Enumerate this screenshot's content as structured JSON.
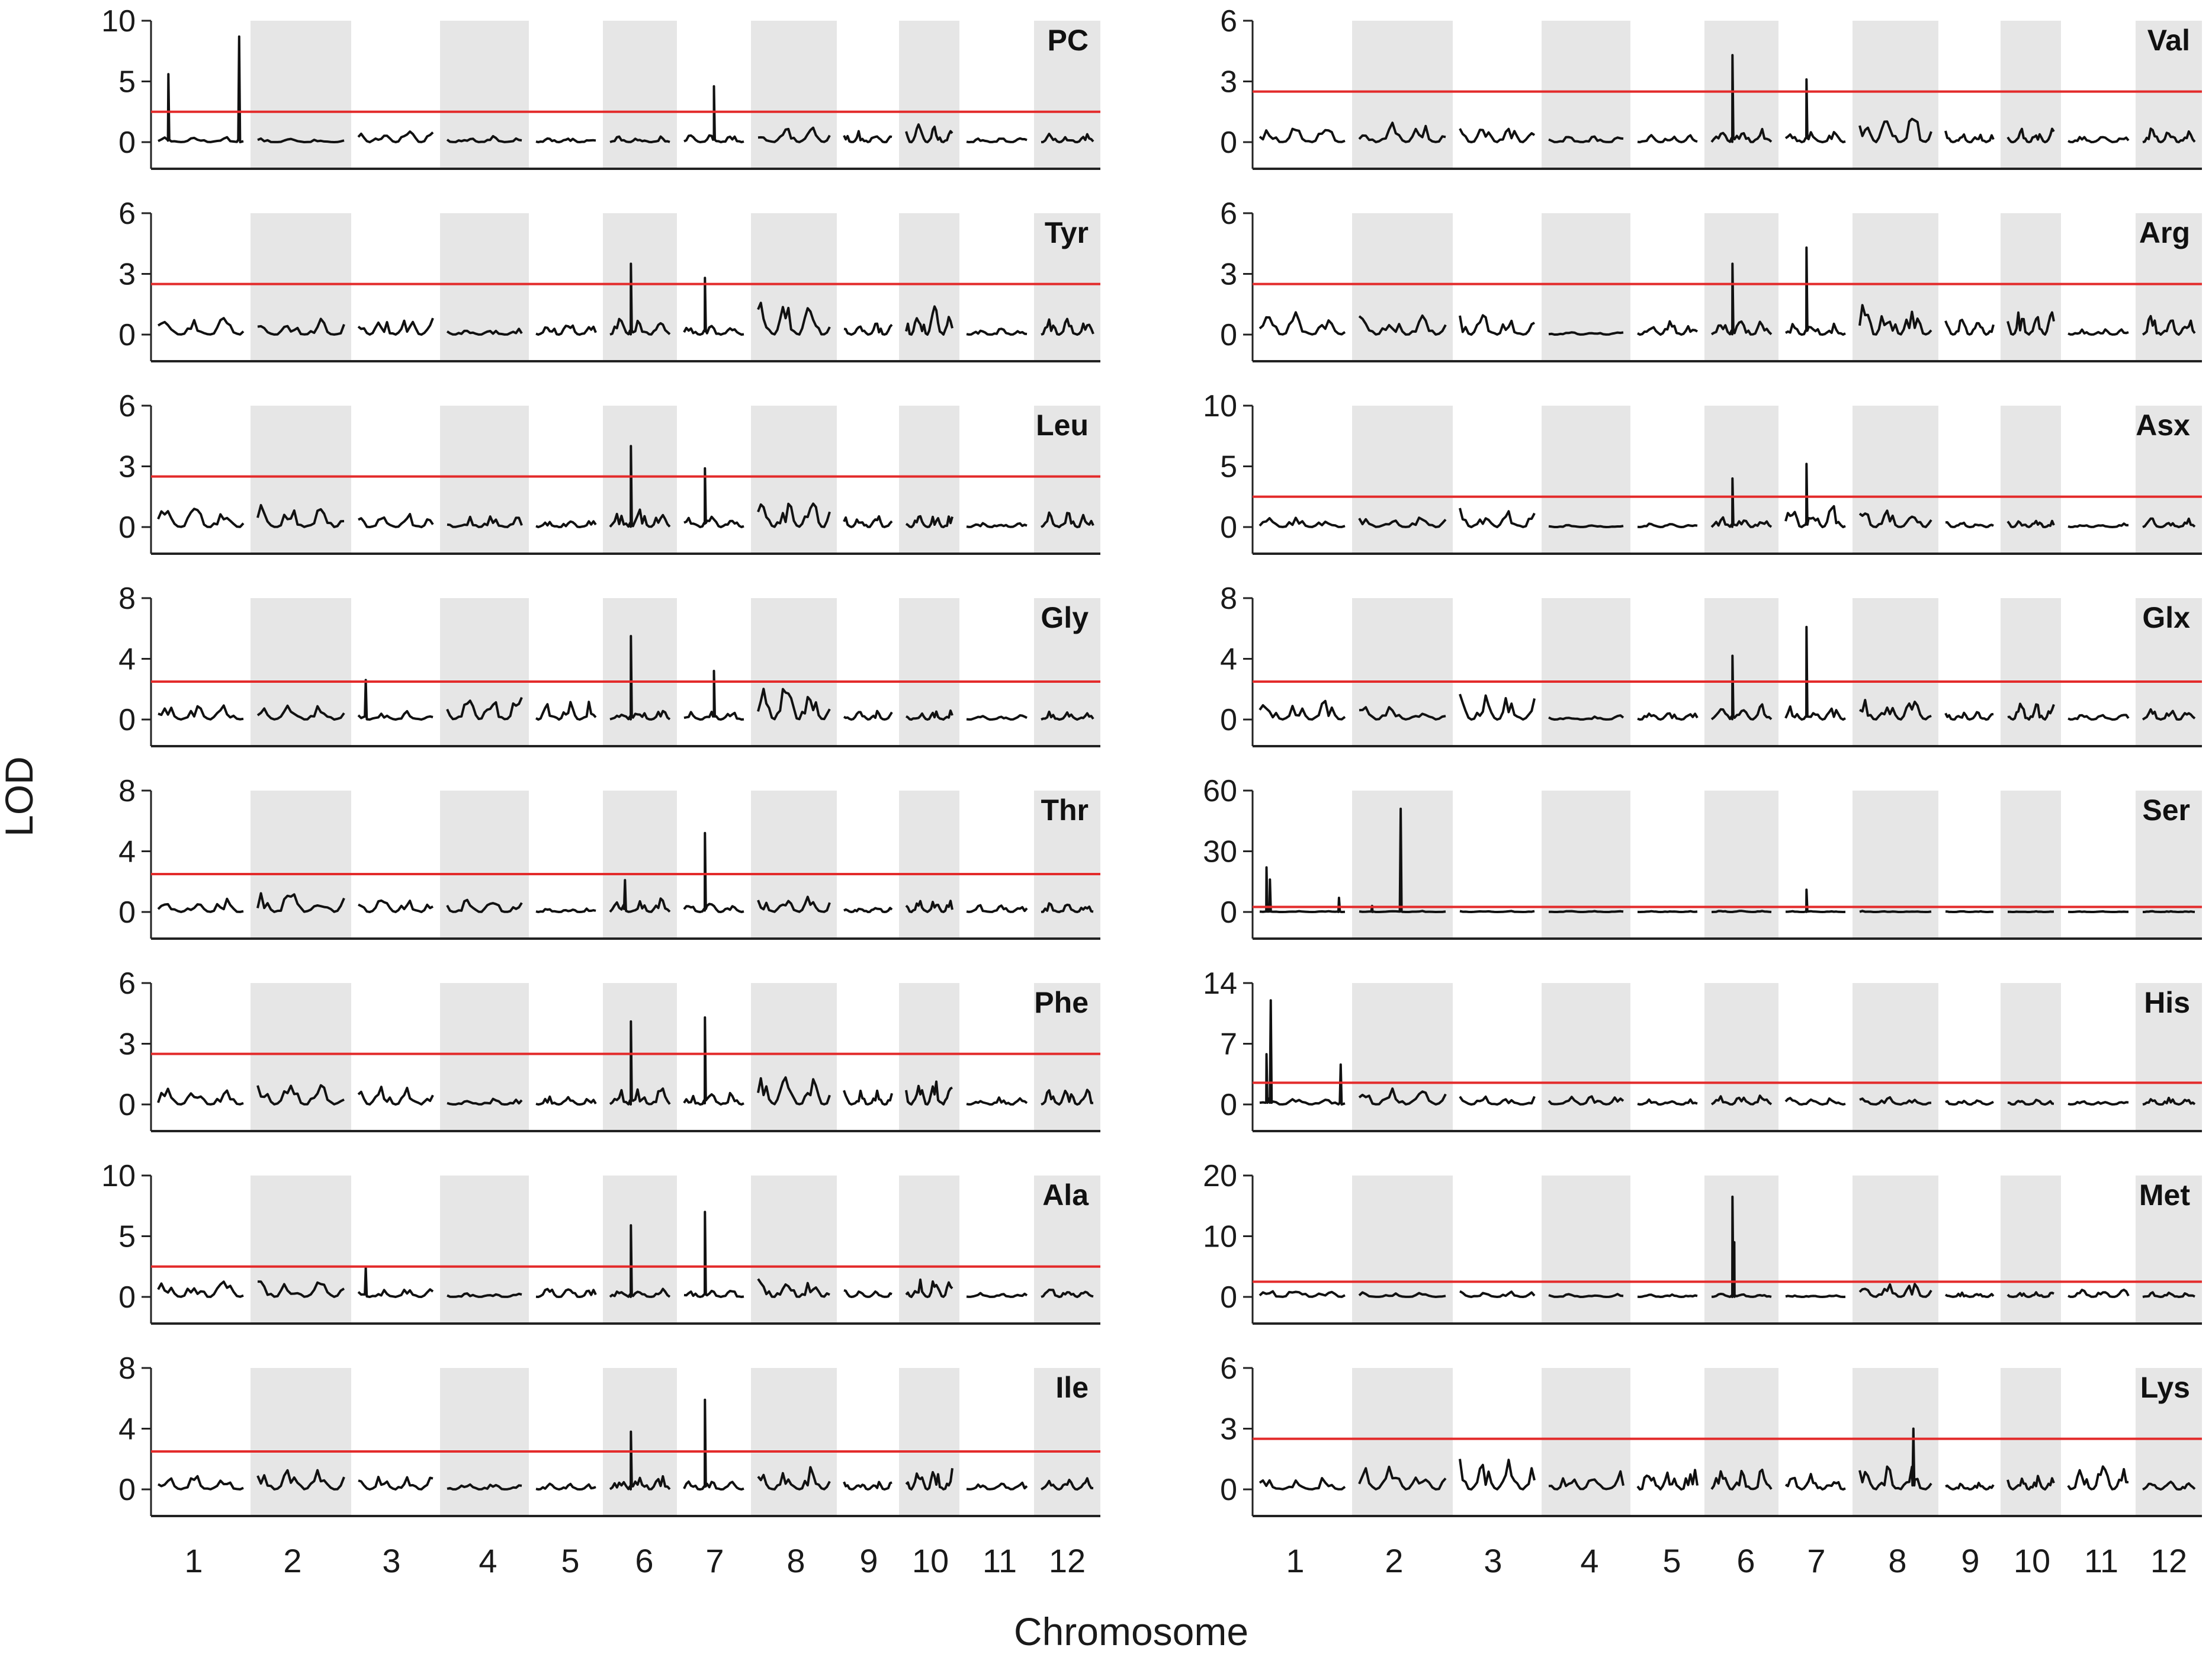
{
  "figure": {
    "ylabel": "LOD",
    "xlabel": "Chromosome",
    "threshold_color": "#e32b2b",
    "band_color": "#e6e6e6",
    "line_color": "#111111"
  },
  "chromosomes": [
    "1",
    "2",
    "3",
    "4",
    "5",
    "6",
    "7",
    "8",
    "9",
    "10",
    "11",
    "12"
  ],
  "chart_data": [
    {
      "type": "line",
      "title": "PC",
      "ylim": [
        0,
        10
      ],
      "yticks": [
        0,
        5,
        10
      ],
      "threshold": 2.5,
      "peaks": [
        {
          "chr": 1,
          "pos": 0.12,
          "lod": 5.6
        },
        {
          "chr": 1,
          "pos": 0.95,
          "lod": 8.7
        },
        {
          "chr": 7,
          "pos": 0.5,
          "lod": 4.6
        }
      ],
      "baseline": [
        0.5,
        0.3,
        1.0,
        0.6,
        0.4,
        0.5,
        0.6,
        1.3,
        1.0,
        1.5,
        0.4,
        0.7
      ]
    },
    {
      "type": "line",
      "title": "Val",
      "ylim": [
        0,
        6
      ],
      "yticks": [
        0,
        3,
        6
      ],
      "threshold": 2.5,
      "peaks": [
        {
          "chr": 6,
          "pos": 0.35,
          "lod": 4.3
        },
        {
          "chr": 7,
          "pos": 0.35,
          "lod": 3.1
        }
      ],
      "baseline": [
        0.8,
        1.0,
        0.8,
        0.3,
        0.4,
        0.8,
        0.6,
        1.6,
        0.6,
        0.7,
        0.3,
        0.7
      ]
    },
    {
      "type": "line",
      "title": "Tyr",
      "ylim": [
        0,
        6
      ],
      "yticks": [
        0,
        3,
        6
      ],
      "threshold": 2.5,
      "peaks": [
        {
          "chr": 6,
          "pos": 0.35,
          "lod": 3.5
        },
        {
          "chr": 7,
          "pos": 0.35,
          "lod": 2.8
        }
      ],
      "baseline": [
        0.9,
        0.8,
        0.9,
        0.3,
        0.7,
        0.8,
        0.5,
        1.7,
        0.6,
        1.5,
        0.3,
        0.8
      ]
    },
    {
      "type": "line",
      "title": "Arg",
      "ylim": [
        0,
        6
      ],
      "yticks": [
        0,
        3,
        6
      ],
      "threshold": 2.5,
      "peaks": [
        {
          "chr": 6,
          "pos": 0.35,
          "lod": 3.5
        },
        {
          "chr": 7,
          "pos": 0.35,
          "lod": 4.3
        }
      ],
      "baseline": [
        1.3,
        1.1,
        1.1,
        0.2,
        0.7,
        0.8,
        0.6,
        1.8,
        0.8,
        1.4,
        0.3,
        1.0
      ]
    },
    {
      "type": "line",
      "title": "Leu",
      "ylim": [
        0,
        6
      ],
      "yticks": [
        0,
        3,
        6
      ],
      "threshold": 2.5,
      "peaks": [
        {
          "chr": 6,
          "pos": 0.35,
          "lod": 4.0
        },
        {
          "chr": 7,
          "pos": 0.35,
          "lod": 2.9
        }
      ],
      "baseline": [
        1.0,
        1.2,
        0.8,
        0.6,
        0.4,
        0.9,
        0.6,
        1.6,
        0.7,
        0.7,
        0.3,
        0.8
      ]
    },
    {
      "type": "line",
      "title": "Asx",
      "ylim": [
        0,
        10
      ],
      "yticks": [
        0,
        5,
        10
      ],
      "threshold": 2.5,
      "peaks": [
        {
          "chr": 6,
          "pos": 0.35,
          "lod": 4.0
        },
        {
          "chr": 7,
          "pos": 0.35,
          "lod": 5.2
        }
      ],
      "baseline": [
        0.8,
        1.0,
        1.8,
        0.2,
        0.3,
        0.9,
        1.8,
        1.6,
        0.5,
        0.8,
        0.3,
        0.8
      ]
    },
    {
      "type": "line",
      "title": "Gly",
      "ylim": [
        0,
        8
      ],
      "yticks": [
        0,
        4,
        8
      ],
      "threshold": 2.5,
      "peaks": [
        {
          "chr": 6,
          "pos": 0.35,
          "lod": 5.5
        },
        {
          "chr": 7,
          "pos": 0.5,
          "lod": 3.2
        },
        {
          "chr": 3,
          "pos": 0.1,
          "lod": 2.6
        }
      ],
      "baseline": [
        1.3,
        1.0,
        0.6,
        1.8,
        1.3,
        0.8,
        0.6,
        2.6,
        0.6,
        0.6,
        0.3,
        0.6
      ]
    },
    {
      "type": "line",
      "title": "Glx",
      "ylim": [
        0,
        8
      ],
      "yticks": [
        0,
        4,
        8
      ],
      "threshold": 2.5,
      "peaks": [
        {
          "chr": 6,
          "pos": 0.35,
          "lod": 4.2
        },
        {
          "chr": 7,
          "pos": 0.35,
          "lod": 6.1
        }
      ],
      "baseline": [
        1.4,
        1.0,
        1.9,
        0.3,
        0.6,
        1.0,
        1.0,
        1.5,
        0.6,
        1.4,
        0.4,
        0.8
      ]
    },
    {
      "type": "line",
      "title": "Thr",
      "ylim": [
        0,
        8
      ],
      "yticks": [
        0,
        4,
        8
      ],
      "threshold": 2.5,
      "peaks": [
        {
          "chr": 6,
          "pos": 0.25,
          "lod": 2.1
        },
        {
          "chr": 7,
          "pos": 0.35,
          "lod": 5.2
        }
      ],
      "baseline": [
        1.0,
        1.5,
        1.0,
        0.8,
        0.3,
        1.0,
        0.6,
        1.2,
        0.4,
        0.9,
        0.5,
        0.7
      ]
    },
    {
      "type": "line",
      "title": "Ser",
      "ylim": [
        0,
        60
      ],
      "yticks": [
        0,
        30,
        60
      ],
      "threshold": 2.5,
      "peaks": [
        {
          "chr": 1,
          "pos": 0.08,
          "lod": 22
        },
        {
          "chr": 1,
          "pos": 0.12,
          "lod": 16
        },
        {
          "chr": 1,
          "pos": 0.93,
          "lod": 7
        },
        {
          "chr": 2,
          "pos": 0.48,
          "lod": 51
        },
        {
          "chr": 2,
          "pos": 0.15,
          "lod": 3
        },
        {
          "chr": 7,
          "pos": 0.35,
          "lod": 11
        }
      ],
      "baseline": [
        0.5,
        0.5,
        0.5,
        0.5,
        0.5,
        0.6,
        0.5,
        0.5,
        0.4,
        0.4,
        0.3,
        0.4
      ]
    },
    {
      "type": "line",
      "title": "Phe",
      "ylim": [
        0,
        6
      ],
      "yticks": [
        0,
        3,
        6
      ],
      "threshold": 2.5,
      "peaks": [
        {
          "chr": 6,
          "pos": 0.35,
          "lod": 4.1
        },
        {
          "chr": 7,
          "pos": 0.35,
          "lod": 4.3
        }
      ],
      "baseline": [
        1.0,
        1.1,
        1.0,
        0.3,
        0.4,
        1.0,
        0.6,
        1.5,
        0.7,
        1.2,
        0.4,
        0.9
      ]
    },
    {
      "type": "line",
      "title": "His",
      "ylim": [
        0,
        14
      ],
      "yticks": [
        0,
        7,
        14
      ],
      "threshold": 2.5,
      "peaks": [
        {
          "chr": 1,
          "pos": 0.08,
          "lod": 5.8
        },
        {
          "chr": 1,
          "pos": 0.13,
          "lod": 12
        },
        {
          "chr": 1,
          "pos": 0.95,
          "lod": 4.6
        }
      ],
      "baseline": [
        0.8,
        2.0,
        1.0,
        1.3,
        0.6,
        1.2,
        1.0,
        0.9,
        0.5,
        0.6,
        0.5,
        0.8
      ]
    },
    {
      "type": "line",
      "title": "Ala",
      "ylim": [
        0,
        10
      ],
      "yticks": [
        0,
        5,
        10
      ],
      "threshold": 2.5,
      "peaks": [
        {
          "chr": 6,
          "pos": 0.35,
          "lod": 5.9
        },
        {
          "chr": 7,
          "pos": 0.35,
          "lod": 7.0
        },
        {
          "chr": 3,
          "pos": 0.1,
          "lod": 2.4
        }
      ],
      "baseline": [
        1.5,
        1.7,
        0.8,
        0.3,
        0.8,
        0.8,
        0.6,
        1.8,
        0.6,
        1.7,
        0.4,
        0.8
      ]
    },
    {
      "type": "line",
      "title": "Met",
      "ylim": [
        0,
        20
      ],
      "yticks": [
        0,
        10,
        20
      ],
      "threshold": 2.5,
      "peaks": [
        {
          "chr": 6,
          "pos": 0.35,
          "lod": 16.5
        },
        {
          "chr": 6,
          "pos": 0.38,
          "lod": 9
        }
      ],
      "baseline": [
        1.6,
        0.8,
        1.0,
        0.6,
        0.5,
        0.6,
        0.4,
        2.4,
        0.8,
        0.8,
        1.2,
        0.8
      ]
    },
    {
      "type": "line",
      "title": "Ile",
      "ylim": [
        0,
        8
      ],
      "yticks": [
        0,
        4,
        8
      ],
      "threshold": 2.5,
      "peaks": [
        {
          "chr": 6,
          "pos": 0.35,
          "lod": 3.8
        },
        {
          "chr": 7,
          "pos": 0.35,
          "lod": 5.9
        }
      ],
      "baseline": [
        1.1,
        1.4,
        1.1,
        0.4,
        0.4,
        1.0,
        0.6,
        1.5,
        0.6,
        1.5,
        0.5,
        0.8
      ]
    },
    {
      "type": "line",
      "title": "Lys",
      "ylim": [
        0,
        6
      ],
      "yticks": [
        0,
        3,
        6
      ],
      "threshold": 2.5,
      "peaks": [
        {
          "chr": 8,
          "pos": 0.75,
          "lod": 3.0
        }
      ],
      "baseline": [
        0.7,
        1.4,
        1.6,
        0.9,
        1.5,
        1.0,
        0.8,
        1.2,
        0.4,
        0.8,
        1.3,
        0.4
      ]
    }
  ]
}
